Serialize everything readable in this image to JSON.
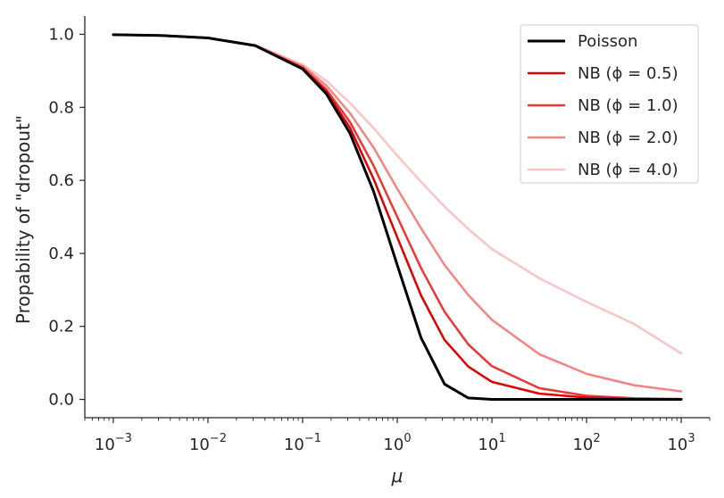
{
  "chart_data": {
    "type": "line",
    "xscale": "log",
    "xlim": [
      0.0005,
      2000
    ],
    "ylim": [
      -0.05,
      1.05
    ],
    "xlabel": "μ",
    "ylabel": "Propability of \"dropout\"",
    "grid": false,
    "legend_position": "top-right",
    "x_ticks": [
      {
        "base": "10",
        "exp": "−3",
        "value": 0.001
      },
      {
        "base": "10",
        "exp": "−2",
        "value": 0.01
      },
      {
        "base": "10",
        "exp": "−1",
        "value": 0.1
      },
      {
        "base": "10",
        "exp": "0",
        "value": 1
      },
      {
        "base": "10",
        "exp": "1",
        "value": 10
      },
      {
        "base": "10",
        "exp": "2",
        "value": 100
      },
      {
        "base": "10",
        "exp": "3",
        "value": 1000
      }
    ],
    "y_ticks": [
      {
        "label": "0.0",
        "value": 0.0
      },
      {
        "label": "0.2",
        "value": 0.2
      },
      {
        "label": "0.4",
        "value": 0.4
      },
      {
        "label": "0.6",
        "value": 0.6
      },
      {
        "label": "0.8",
        "value": 0.8
      },
      {
        "label": "1.0",
        "value": 1.0
      }
    ],
    "x": [
      0.001,
      0.00316,
      0.01,
      0.0316,
      0.1,
      0.178,
      0.316,
      0.562,
      1,
      1.78,
      3.16,
      5.62,
      10,
      31.6,
      100,
      316,
      1000
    ],
    "series": [
      {
        "name": "Poisson",
        "color": "#000000",
        "width": 3,
        "values": [
          0.999,
          0.997,
          0.99,
          0.969,
          0.905,
          0.837,
          0.729,
          0.57,
          0.368,
          0.169,
          0.042,
          0.004,
          0.0,
          0.0,
          0.0,
          0.0,
          0.0
        ]
      },
      {
        "name": "NB (ϕ = 0.5)",
        "color": "#e00000",
        "width": 2.5,
        "values": [
          0.999,
          0.997,
          0.99,
          0.969,
          0.907,
          0.843,
          0.744,
          0.604,
          0.444,
          0.285,
          0.163,
          0.09,
          0.048,
          0.016,
          0.005,
          0.001,
          0.0
        ]
      },
      {
        "name": "NB (ϕ = 1.0)",
        "color": "#ee3535",
        "width": 2.5,
        "values": [
          0.999,
          0.997,
          0.99,
          0.969,
          0.909,
          0.849,
          0.76,
          0.64,
          0.5,
          0.36,
          0.24,
          0.151,
          0.091,
          0.031,
          0.01,
          0.003,
          0.001
        ]
      },
      {
        "name": "NB (ϕ = 2.0)",
        "color": "#f48484",
        "width": 2.5,
        "values": [
          0.999,
          0.997,
          0.99,
          0.97,
          0.913,
          0.86,
          0.784,
          0.69,
          0.577,
          0.469,
          0.368,
          0.286,
          0.218,
          0.124,
          0.07,
          0.039,
          0.022
        ]
      },
      {
        "name": "NB (ϕ = 4.0)",
        "color": "#f8c4c4",
        "width": 2.5,
        "values": [
          0.999,
          0.997,
          0.99,
          0.97,
          0.917,
          0.873,
          0.812,
          0.743,
          0.668,
          0.596,
          0.528,
          0.467,
          0.412,
          0.332,
          0.267,
          0.207,
          0.126
        ]
      }
    ]
  }
}
